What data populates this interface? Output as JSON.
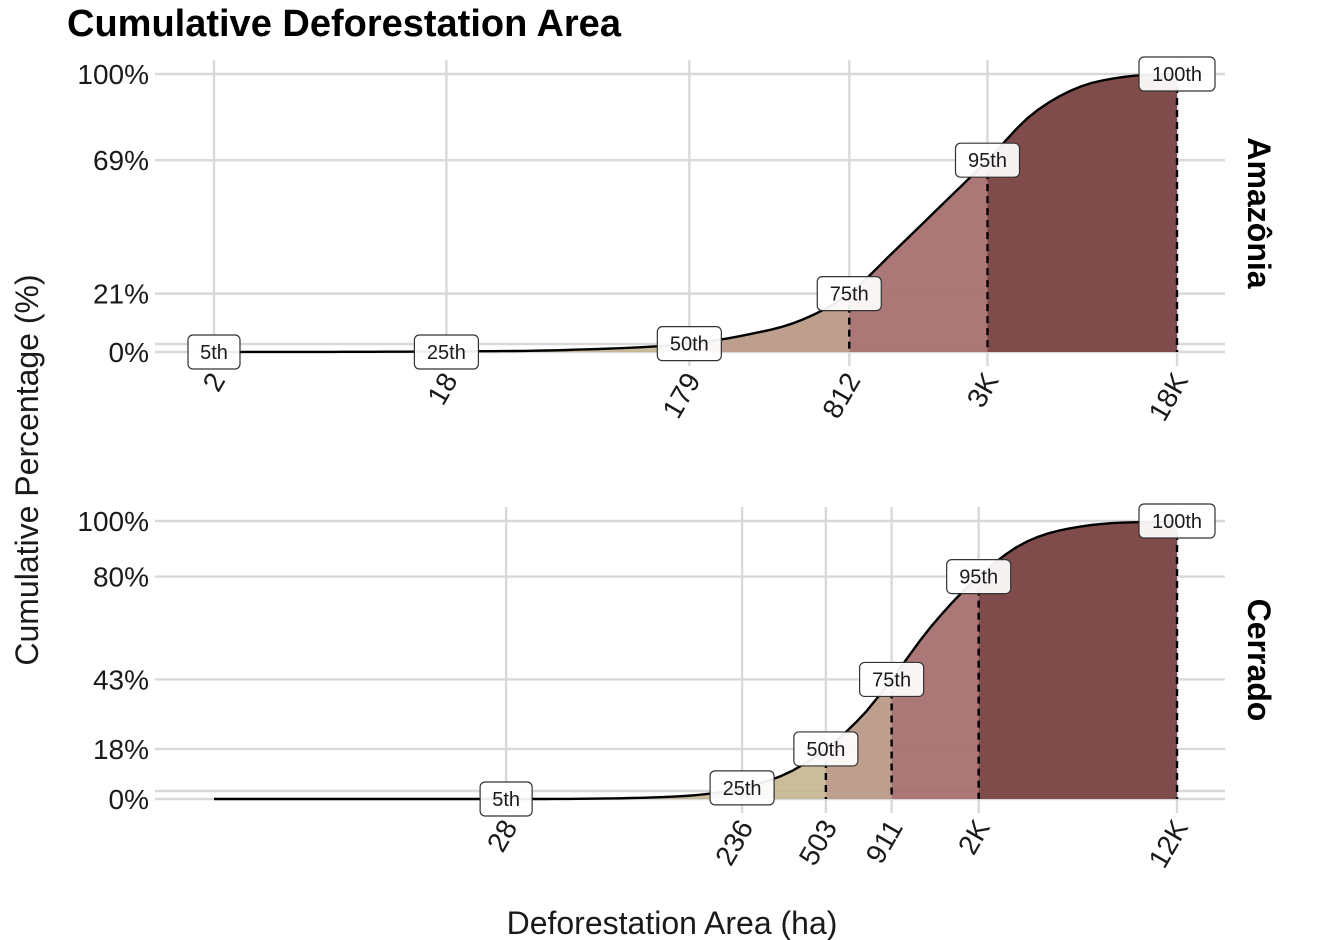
{
  "chart_data": {
    "type": "area",
    "title": "Cumulative Deforestation Area",
    "xlabel": "Deforestation Area (ha)",
    "ylabel": "Cumulative Percentage (%)",
    "x_scale": "log",
    "colors": {
      "band_0_50": "#c2b18a",
      "band_50_75": "#bb9a88",
      "band_75_95": "#a87070",
      "band_95_100": "#804c4b",
      "curve": "#000000",
      "label_fill": "#ffffff",
      "label_stroke": "#333333",
      "grid": "#d9d9d9"
    },
    "panels": [
      {
        "name": "Amazônia",
        "x_tick_labels": [
          "2",
          "18",
          "179",
          "812",
          "3K",
          "18K"
        ],
        "x_tick_values": [
          2,
          18,
          179,
          812,
          3000,
          18000
        ],
        "y_tick_labels": [
          "100%",
          "69%",
          "21%",
          "0%"
        ],
        "y_tick_values": [
          100,
          69,
          21,
          0
        ],
        "percentiles": [
          {
            "label": "5th",
            "x": 2,
            "y": 0
          },
          {
            "label": "25th",
            "x": 18,
            "y": 0
          },
          {
            "label": "50th",
            "x": 179,
            "y": 3
          },
          {
            "label": "75th",
            "x": 812,
            "y": 21
          },
          {
            "label": "95th",
            "x": 3000,
            "y": 69
          },
          {
            "label": "100th",
            "x": 18000,
            "y": 100
          }
        ],
        "curve": [
          [
            2,
            0
          ],
          [
            18,
            0.2
          ],
          [
            60,
            0.8
          ],
          [
            179,
            3
          ],
          [
            300,
            6
          ],
          [
            500,
            11
          ],
          [
            812,
            21
          ],
          [
            1200,
            35
          ],
          [
            1800,
            50
          ],
          [
            3000,
            69
          ],
          [
            4500,
            85
          ],
          [
            7000,
            95
          ],
          [
            11000,
            99
          ],
          [
            18000,
            100
          ]
        ]
      },
      {
        "name": "Cerrado",
        "x_tick_labels": [
          "28",
          "236",
          "503",
          "911",
          "2K",
          "12K"
        ],
        "x_tick_values": [
          28,
          236,
          503,
          911,
          2000,
          12000
        ],
        "y_tick_labels": [
          "100%",
          "80%",
          "43%",
          "18%",
          "0%"
        ],
        "y_tick_values": [
          100,
          80,
          43,
          18,
          0
        ],
        "percentiles": [
          {
            "label": "5th",
            "x": 28,
            "y": 0
          },
          {
            "label": "25th",
            "x": 236,
            "y": 4
          },
          {
            "label": "50th",
            "x": 503,
            "y": 18
          },
          {
            "label": "75th",
            "x": 911,
            "y": 43
          },
          {
            "label": "95th",
            "x": 2000,
            "y": 80
          },
          {
            "label": "100th",
            "x": 12000,
            "y": 100
          }
        ],
        "curve": [
          [
            2,
            0
          ],
          [
            28,
            0
          ],
          [
            100,
            0.5
          ],
          [
            180,
            2
          ],
          [
            236,
            4
          ],
          [
            350,
            9
          ],
          [
            503,
            18
          ],
          [
            700,
            30
          ],
          [
            911,
            43
          ],
          [
            1300,
            62
          ],
          [
            2000,
            80
          ],
          [
            3000,
            92
          ],
          [
            5000,
            98
          ],
          [
            12000,
            100
          ]
        ]
      }
    ]
  }
}
